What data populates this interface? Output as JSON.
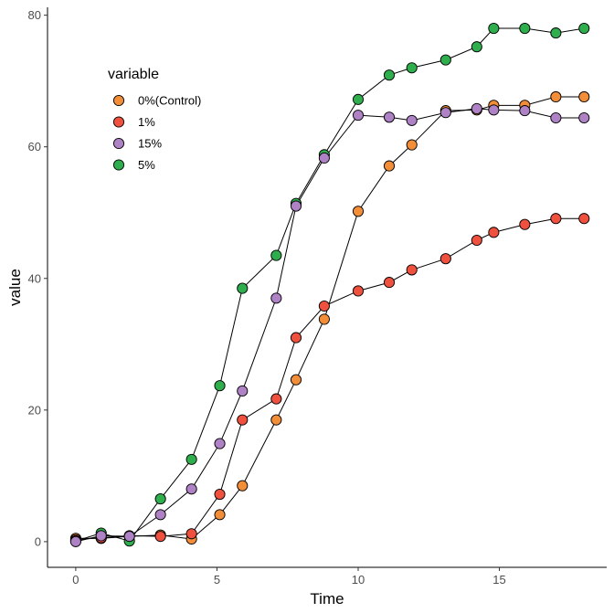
{
  "chart_data": {
    "type": "line",
    "xlabel": "Time",
    "ylabel": "value",
    "xlim": [
      -1,
      18.8
    ],
    "ylim": [
      -3.9,
      81.2
    ],
    "x_ticks": [
      0,
      5,
      10,
      15
    ],
    "y_ticks": [
      0,
      20,
      40,
      60,
      80
    ],
    "grid": false,
    "legend": {
      "title": "variable",
      "placement": "top-left"
    },
    "series": [
      {
        "name": "0%(Control)",
        "color": "#F28E38",
        "x": [
          0,
          0.9,
          1.9,
          3.0,
          4.1,
          5.1,
          5.9,
          7.1,
          7.8,
          8.8,
          10.0,
          11.1,
          11.9,
          13.1,
          14.2,
          14.8,
          15.9,
          17.0,
          18.0
        ],
        "y": [
          0.5,
          0.5,
          0.8,
          1.0,
          0.4,
          4.1,
          8.5,
          18.5,
          24.6,
          33.8,
          50.2,
          57.1,
          60.3,
          65.5,
          65.6,
          66.3,
          66.3,
          67.6,
          67.6
        ]
      },
      {
        "name": "1%",
        "color": "#F0513F",
        "x": [
          0,
          0.9,
          1.9,
          3.0,
          4.1,
          5.1,
          5.9,
          7.1,
          7.8,
          8.8,
          10.0,
          11.1,
          11.9,
          13.1,
          14.2,
          14.8,
          15.9,
          17.0,
          18.0
        ],
        "y": [
          0.3,
          0.6,
          0.9,
          0.8,
          1.2,
          7.2,
          18.5,
          21.7,
          31.0,
          35.8,
          38.1,
          39.4,
          41.3,
          43.0,
          45.8,
          47.0,
          48.2,
          49.1,
          49.1
        ]
      },
      {
        "name": "15%",
        "color": "#AE82C4",
        "x": [
          0,
          0.9,
          1.9,
          3.0,
          4.1,
          5.1,
          5.9,
          7.1,
          7.8,
          8.8,
          10.0,
          11.1,
          11.9,
          13.1,
          14.2,
          14.8,
          15.9,
          17.0,
          18.0
        ],
        "y": [
          0.0,
          0.9,
          0.8,
          4.1,
          8.0,
          14.9,
          22.9,
          37.0,
          51.0,
          58.3,
          64.8,
          64.5,
          64.0,
          65.2,
          65.8,
          65.6,
          65.5,
          64.4,
          64.4
        ]
      },
      {
        "name": "5%",
        "color": "#2FAE4E",
        "x": [
          0,
          0.9,
          1.9,
          3.0,
          4.1,
          5.1,
          5.9,
          7.1,
          7.8,
          8.8,
          10.0,
          11.1,
          11.9,
          13.1,
          14.2,
          14.8,
          15.9,
          17.0,
          18.0
        ],
        "y": [
          0.1,
          1.3,
          0.1,
          6.5,
          12.5,
          23.7,
          38.5,
          43.5,
          51.4,
          58.8,
          67.2,
          70.9,
          72.0,
          73.2,
          75.2,
          78.0,
          78.0,
          77.3,
          78.0
        ]
      }
    ],
    "draw_order": [
      0,
      1,
      3,
      2
    ]
  }
}
